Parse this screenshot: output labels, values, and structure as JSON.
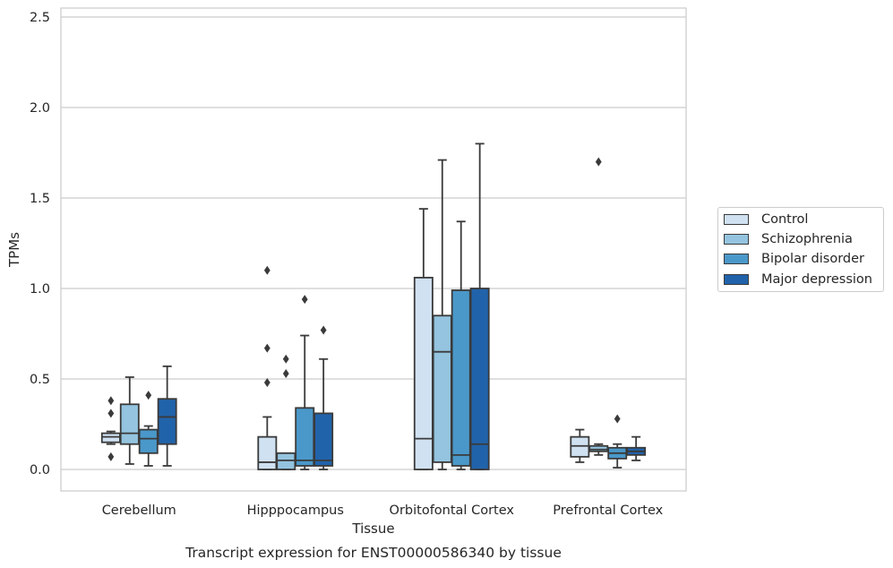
{
  "chart_data": {
    "type": "box",
    "title": "",
    "xlabel": "Tissue",
    "ylabel": "TPMs",
    "caption": "Transcript expression for ENST00000586340 by tissue",
    "ylim": [
      -0.12,
      2.55
    ],
    "yticks": [
      "0.0",
      "0.5",
      "1.0",
      "1.5",
      "2.0",
      "2.5"
    ],
    "grid": "horizontal",
    "legend_position": "right",
    "categories": [
      "Cerebellum",
      "Hipppocampus",
      "Orbitofontal Cortex",
      "Prefrontal Cortex"
    ],
    "series": [
      {
        "name": "Control",
        "color": "#d0e1f2",
        "boxes": [
          {
            "whislo": 0.14,
            "q1": 0.15,
            "med": 0.18,
            "q3": 0.2,
            "whishi": 0.21,
            "fliers": [
              0.38,
              0.31,
              0.07
            ]
          },
          {
            "whislo": 0.0,
            "q1": 0.0,
            "med": 0.04,
            "q3": 0.18,
            "whishi": 0.29,
            "fliers": [
              1.1,
              0.67,
              0.48
            ]
          },
          {
            "whislo": 0.0,
            "q1": 0.0,
            "med": 0.17,
            "q3": 1.06,
            "whishi": 1.44,
            "fliers": []
          },
          {
            "whislo": 0.04,
            "q1": 0.07,
            "med": 0.13,
            "q3": 0.18,
            "whishi": 0.22,
            "fliers": []
          }
        ]
      },
      {
        "name": "Schizophrenia",
        "color": "#94c4df",
        "boxes": [
          {
            "whislo": 0.03,
            "q1": 0.14,
            "med": 0.2,
            "q3": 0.36,
            "whishi": 0.51,
            "fliers": []
          },
          {
            "whislo": 0.0,
            "q1": 0.0,
            "med": 0.05,
            "q3": 0.09,
            "whishi": 0.09,
            "fliers": [
              0.61,
              0.53
            ]
          },
          {
            "whislo": 0.0,
            "q1": 0.04,
            "med": 0.65,
            "q3": 0.85,
            "whishi": 1.71,
            "fliers": []
          },
          {
            "whislo": 0.08,
            "q1": 0.1,
            "med": 0.11,
            "q3": 0.13,
            "whishi": 0.14,
            "fliers": [
              1.7
            ]
          }
        ]
      },
      {
        "name": "Bipolar disorder",
        "color": "#4a98c9",
        "boxes": [
          {
            "whislo": 0.02,
            "q1": 0.09,
            "med": 0.17,
            "q3": 0.22,
            "whishi": 0.24,
            "fliers": [
              0.41
            ]
          },
          {
            "whislo": 0.0,
            "q1": 0.02,
            "med": 0.05,
            "q3": 0.34,
            "whishi": 0.74,
            "fliers": [
              0.94
            ]
          },
          {
            "whislo": 0.0,
            "q1": 0.02,
            "med": 0.08,
            "q3": 0.99,
            "whishi": 1.37,
            "fliers": []
          },
          {
            "whislo": 0.01,
            "q1": 0.06,
            "med": 0.09,
            "q3": 0.12,
            "whishi": 0.14,
            "fliers": [
              0.28
            ]
          }
        ]
      },
      {
        "name": "Major depression",
        "color": "#2163aa",
        "boxes": [
          {
            "whislo": 0.02,
            "q1": 0.14,
            "med": 0.29,
            "q3": 0.39,
            "whishi": 0.57,
            "fliers": []
          },
          {
            "whislo": 0.0,
            "q1": 0.02,
            "med": 0.05,
            "q3": 0.31,
            "whishi": 0.61,
            "fliers": [
              0.77
            ]
          },
          {
            "whislo": 0.0,
            "q1": 0.0,
            "med": 0.14,
            "q3": 1.0,
            "whishi": 1.8,
            "fliers": []
          },
          {
            "whislo": 0.05,
            "q1": 0.08,
            "med": 0.1,
            "q3": 0.12,
            "whishi": 0.18,
            "fliers": []
          }
        ]
      }
    ]
  }
}
